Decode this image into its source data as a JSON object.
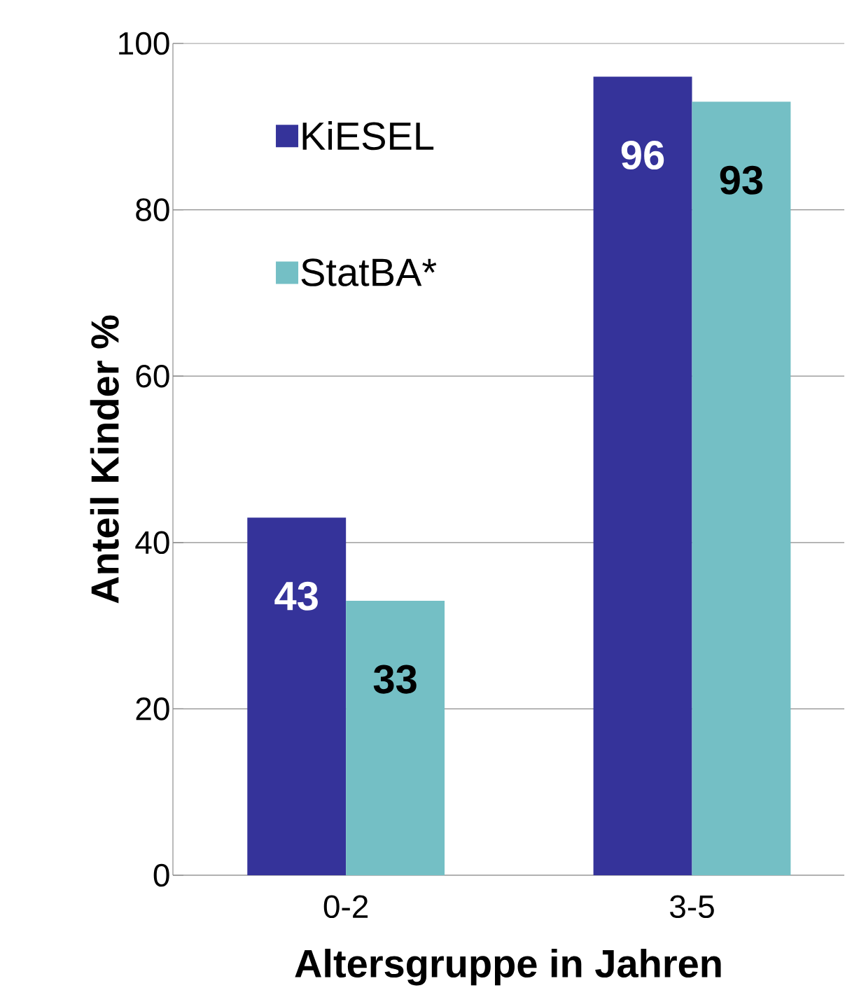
{
  "chart_data": {
    "type": "bar",
    "xlabel": "Altersgruppe in Jahren",
    "ylabel": "Anteil Kinder %",
    "categories": [
      "0-2",
      "3-5"
    ],
    "series": [
      {
        "name": "KiESEL",
        "color": "#35339a",
        "values": [
          43,
          96
        ]
      },
      {
        "name": "StatBA*",
        "color": "#74bfc5",
        "values": [
          33,
          93
        ]
      }
    ],
    "ylim": [
      0,
      100
    ],
    "yticks": [
      0,
      20,
      40,
      60,
      80,
      100
    ],
    "grid": "y",
    "legend": "top left",
    "data_labels": true
  }
}
